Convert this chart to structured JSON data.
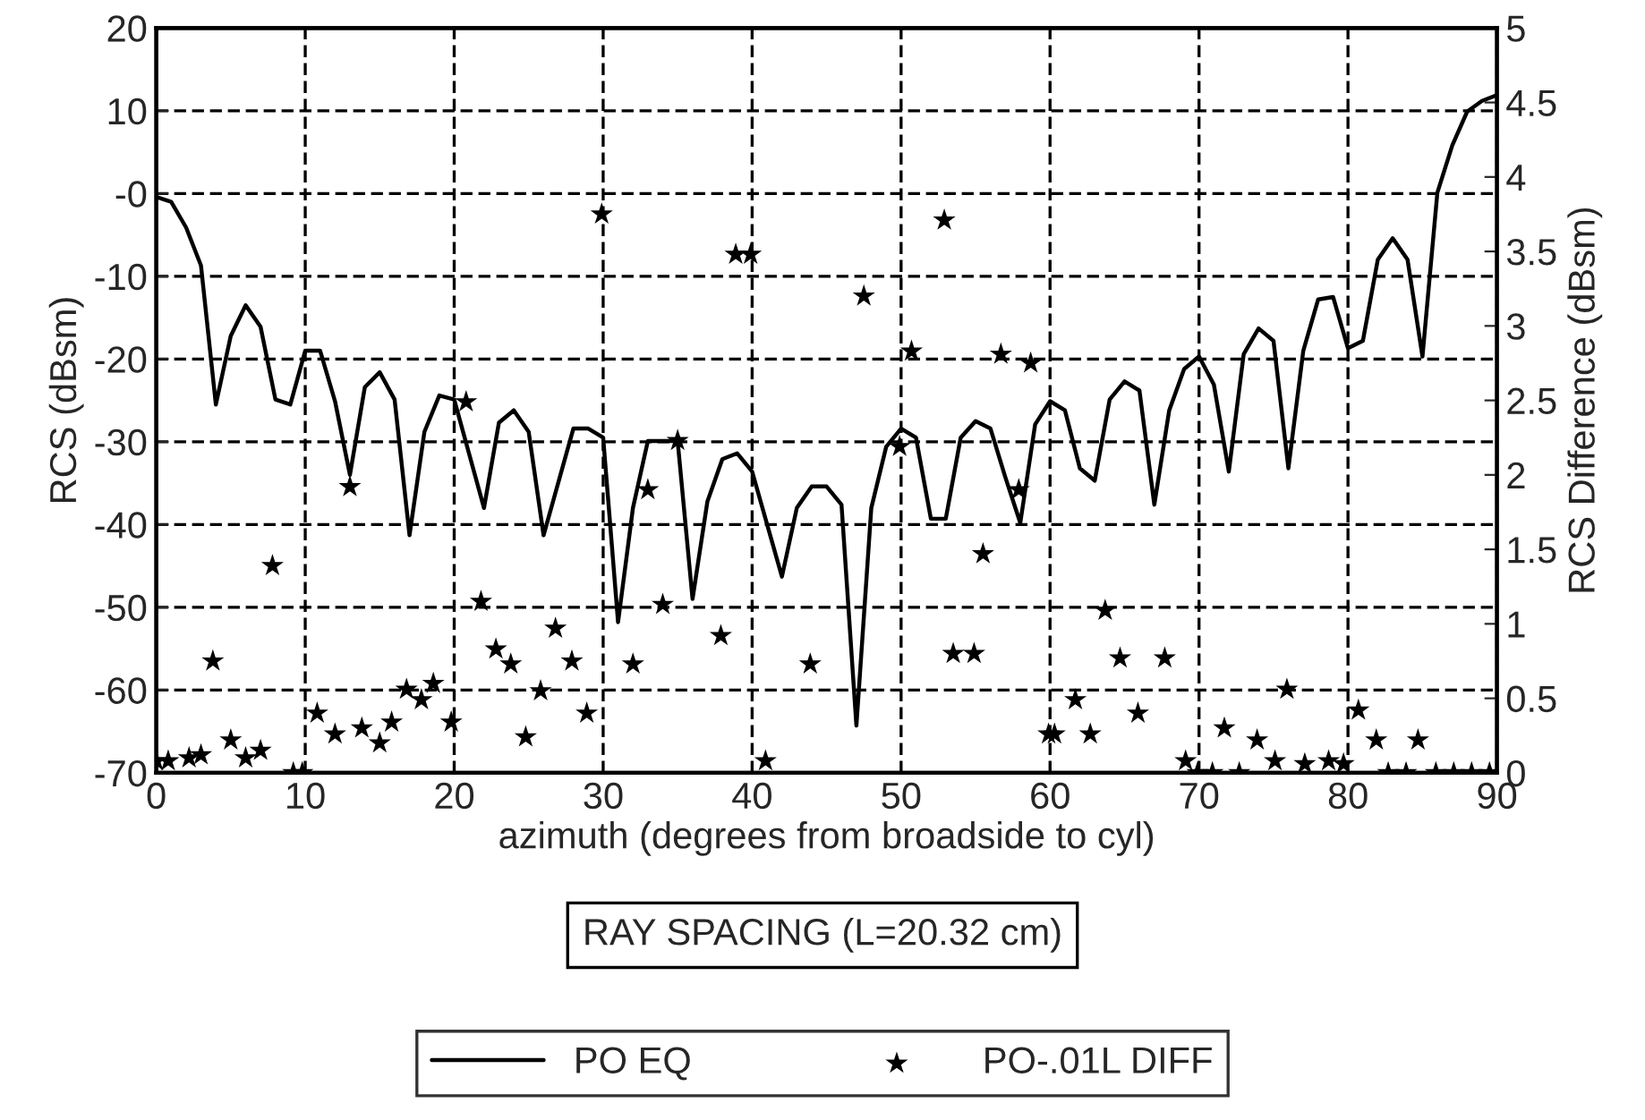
{
  "chart_data": {
    "type": "line",
    "xlabel": "azimuth (degrees from broadside to cyl)",
    "ylabel": "RCS (dBsm)",
    "y2label": "RCS Difference (dBsm)",
    "legend_title": "RAY SPACING (L=20.32 cm)",
    "xlim": [
      0,
      90
    ],
    "xticks": [
      0,
      10,
      20,
      30,
      40,
      50,
      60,
      70,
      80,
      90
    ],
    "ylim": [
      -70,
      20
    ],
    "yticks": [
      -70,
      -60,
      -50,
      -40,
      -30,
      -20,
      -10,
      {
        "value": 0,
        "label": "-0"
      },
      10,
      20
    ],
    "y2lim": [
      0,
      5
    ],
    "y2ticks": [
      0,
      0.5,
      1,
      1.5,
      2,
      2.5,
      3,
      3.5,
      4,
      4.5,
      5
    ],
    "grid": true,
    "legend": "bottom",
    "series": [
      {
        "name": "PO EQ",
        "type": "line",
        "color": "#000000",
        "marker": "none",
        "line_style": "solid",
        "x": [
          0,
          1,
          2,
          3,
          4,
          5,
          6,
          7,
          8,
          9,
          10,
          11,
          12,
          13,
          14,
          15,
          16,
          17,
          18,
          19,
          20,
          22,
          23,
          24,
          25,
          26,
          28,
          29,
          30,
          31,
          32,
          33,
          34,
          35,
          36,
          37,
          38,
          39,
          40,
          42,
          43,
          44,
          45,
          46,
          47,
          48,
          49,
          50,
          51,
          52,
          53,
          54,
          55,
          56,
          57,
          58,
          59,
          60,
          61,
          62,
          63,
          64,
          65,
          66,
          67,
          68,
          69,
          70,
          71,
          72,
          73,
          74,
          75,
          76,
          77,
          78,
          79,
          80,
          81,
          82,
          83,
          84,
          85,
          86,
          87,
          88,
          89,
          90
        ],
        "values": [
          -0.4,
          -1,
          -4.1,
          -8.7,
          -25.5,
          -17.2,
          -13.5,
          -16.1,
          -24.9,
          -25.5,
          -19,
          -19,
          -25.1,
          -34,
          -23.4,
          -21.6,
          -24.9,
          -41.3,
          -28.8,
          -24.4,
          -24.9,
          -38,
          -27.7,
          -26.2,
          -28.8,
          -41.3,
          -28.4,
          -28.4,
          -29.5,
          -51.8,
          -38,
          -29.9,
          -29.9,
          -29.9,
          -49,
          -37.2,
          -32.1,
          -31.4,
          -33.6,
          -46.3,
          -38,
          -35.4,
          -35.4,
          -37.6,
          -64.3,
          -38,
          -30.6,
          -28.4,
          -29.5,
          -39.3,
          -39.3,
          -29.5,
          -27.5,
          -28.4,
          -34.3,
          -39.8,
          -27.9,
          -25.1,
          -26.2,
          -33.2,
          -34.7,
          -24.9,
          -22.7,
          -23.8,
          -37.6,
          -26.2,
          -21.2,
          -19.7,
          -23.1,
          -33.6,
          -19.4,
          -16.3,
          -17.8,
          -33.2,
          -19,
          -12.8,
          -12.5,
          -18.7,
          -17.8,
          -8,
          -5.4,
          -8,
          -19.7,
          0.1,
          5.8,
          9.9,
          11.2,
          11.9
        ]
      },
      {
        "name": "PO-.01L DIFF",
        "type": "scatter",
        "axis": "y2",
        "color": "#000000",
        "marker": "star",
        "x": [
          0,
          0.8,
          2.2,
          3,
          3.8,
          5,
          6,
          7,
          7.8,
          9.2,
          9.8,
          10.8,
          12,
          13,
          13.8,
          15,
          15.8,
          16.8,
          17.8,
          18.6,
          19.8,
          20.8,
          21.8,
          22.8,
          23.8,
          24.8,
          25.8,
          26.8,
          27.9,
          28.9,
          29.9,
          32,
          33,
          34,
          35,
          37.9,
          38.9,
          39.9,
          40.9,
          43.9,
          47.5,
          49.9,
          50.7,
          52.9,
          53.5,
          54.9,
          55.5,
          56.7,
          57.9,
          58.7,
          59.9,
          60.3,
          61.7,
          62.7,
          63.7,
          64.7,
          65.9,
          67.7,
          69.1,
          69.9,
          70.9,
          71.7,
          72.7,
          73.9,
          75.1,
          75.9,
          77.1,
          78.7,
          79.7,
          80.7,
          81.9,
          82.7,
          83.9,
          84.7,
          85.9,
          87.1,
          88.3,
          89.5
        ],
        "values": [
          0.08,
          0.08,
          0.1,
          0.12,
          0.75,
          0.22,
          0.1,
          0.15,
          1.39,
          0,
          0,
          0.4,
          0.26,
          1.92,
          0.3,
          0.2,
          0.34,
          0.56,
          0.49,
          0.6,
          0.34,
          2.49,
          1.15,
          0.83,
          0.73,
          0.24,
          0.55,
          0.97,
          0.75,
          0.4,
          3.75,
          0.73,
          1.9,
          1.13,
          2.23,
          0.92,
          3.48,
          3.48,
          0.08,
          0.73,
          3.2,
          2.19,
          2.83,
          3.71,
          0.8,
          0.8,
          1.47,
          2.81,
          1.9,
          2.75,
          0.26,
          0.26,
          0.49,
          0.26,
          1.09,
          0.77,
          0.4,
          0.77,
          0.08,
          0,
          0,
          0.3,
          0,
          0.22,
          0.08,
          0.56,
          0.06,
          0.08,
          0.06,
          0.42,
          0.22,
          0,
          0,
          0.22,
          0,
          0,
          0,
          0
        ]
      }
    ]
  }
}
